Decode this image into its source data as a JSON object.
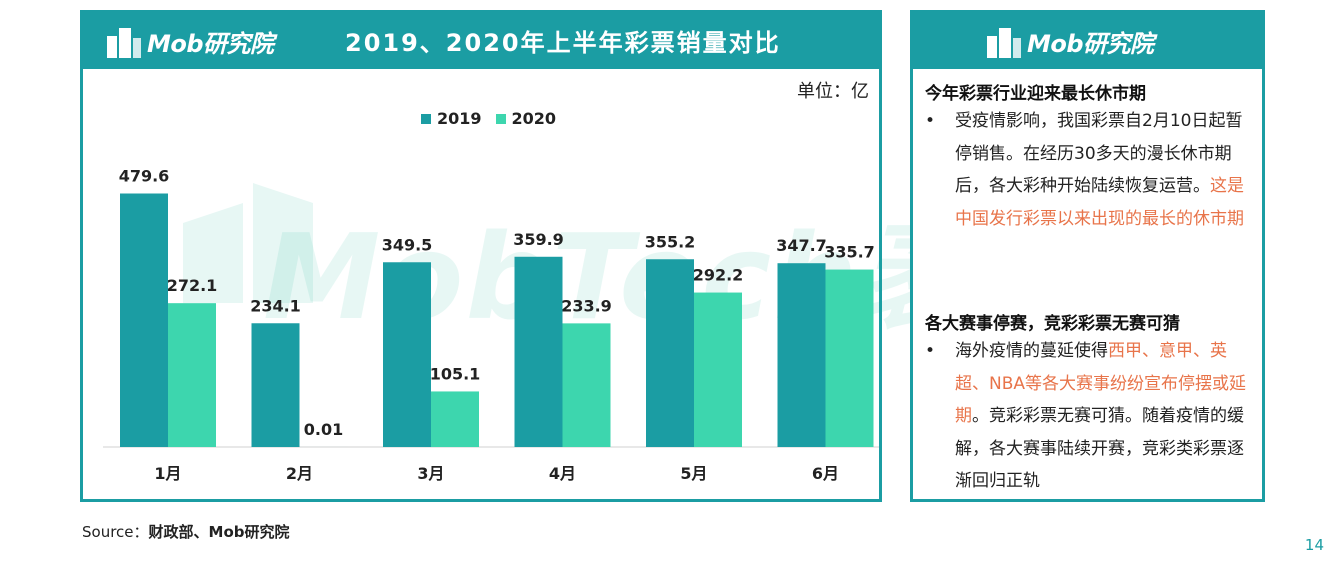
{
  "brand": "Mob研究院",
  "watermark": "MobTech袤博",
  "chart_data": {
    "type": "bar",
    "title": "2019、2020年上半年彩票销量对比",
    "unit": "单位：亿",
    "categories": [
      "1月",
      "2月",
      "3月",
      "4月",
      "5月",
      "6月"
    ],
    "series": [
      {
        "name": "2019",
        "color": "#1b9da3",
        "values": [
          479.6,
          234.1,
          349.5,
          359.9,
          355.2,
          347.7
        ],
        "labels": [
          "479.6",
          "234.1",
          "349.5",
          "359.9",
          "355.2",
          "347.7"
        ]
      },
      {
        "name": "2020",
        "color": "#3dd6ae",
        "values": [
          272.1,
          0.01,
          105.1,
          233.9,
          292.2,
          335.7
        ],
        "labels": [
          "272.1",
          "0.01",
          "105.1",
          "233.9",
          "292.2",
          "335.7"
        ]
      }
    ],
    "ylim": [
      0,
      560
    ],
    "grid": false,
    "legend": "top-center"
  },
  "panel": {
    "section1": {
      "title": "今年彩票行业迎来最长休市期",
      "bullet": "•",
      "text_plain": "受疫情影响，我国彩票自2月10日起暂停销售。在经历30多天的漫长休市期后，各大彩种开始陆续恢复运营。",
      "text_highlight": "这是中国发行彩票以来出现的最长的休市期"
    },
    "section2": {
      "title": "各大赛事停赛，竞彩彩票无赛可猜",
      "bullet": "•",
      "text_plain1": "海外疫情的蔓延使得",
      "text_highlight": "西甲、意甲、英超、NBA等各大赛事纷纷宣布停摆或延期",
      "text_plain2": "。竞彩彩票无赛可猜。随着疫情的缓解，各大赛事陆续开赛，竞彩类彩票逐渐回归正轨"
    }
  },
  "footer": {
    "source_label": "Source：",
    "source_value": "财政部、Mob研究院",
    "page_number": "14"
  },
  "colors": {
    "primary": "#1b9da3",
    "secondary": "#3dd6ae",
    "highlight": "#e8744a"
  }
}
